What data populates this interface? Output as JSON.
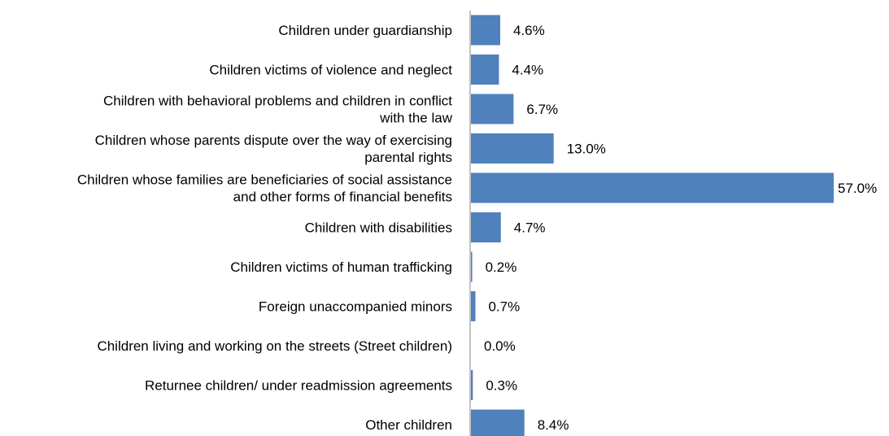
{
  "chart_data": {
    "type": "bar",
    "orientation": "horizontal",
    "categories": [
      [
        "Children under guardianship"
      ],
      [
        "Children victims of violence and neglect"
      ],
      [
        "Children with behavioral problems and children in conflict",
        "with the law"
      ],
      [
        "Children whose parents dispute over the way of exercising",
        "parental rights"
      ],
      [
        "Children whose families are beneficiaries of social assistance",
        "and other forms of financial benefits"
      ],
      [
        "Children with disabilities"
      ],
      [
        "Children victims of human trafficking"
      ],
      [
        "Foreign unaccompanied minors"
      ],
      [
        "Children living and working on the streets (Street children)"
      ],
      [
        "Returnee children/ under readmission agreements"
      ],
      [
        "Other children"
      ]
    ],
    "values": [
      4.6,
      4.4,
      6.7,
      13.0,
      57.0,
      4.7,
      0.2,
      0.7,
      0.0,
      0.3,
      8.4
    ],
    "value_labels": [
      "4.6%",
      "4.4%",
      "6.7%",
      "13.0%",
      "57.0%",
      "4.7%",
      "0.2%",
      "0.7%",
      "0.0%",
      "0.3%",
      "8.4%"
    ],
    "xlim": [
      0,
      57
    ],
    "bar_color": "#4f81bd",
    "axis_color": "#868686",
    "grid": false,
    "legend": "none"
  }
}
